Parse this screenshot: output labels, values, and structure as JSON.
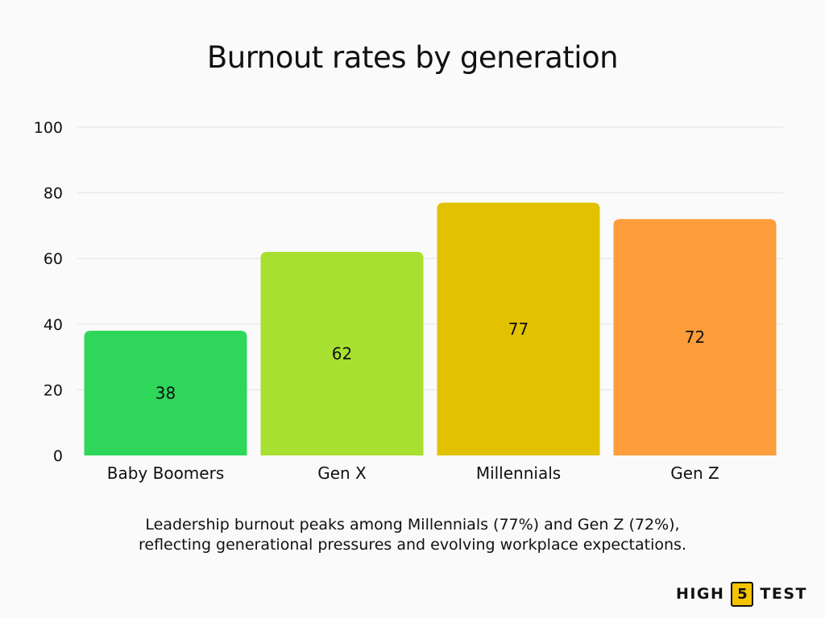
{
  "chart_data": {
    "type": "bar",
    "title": "Burnout rates by generation",
    "categories": [
      "Baby Boomers",
      "Gen X",
      "Millennials",
      "Gen Z"
    ],
    "values": [
      38,
      62,
      77,
      72
    ],
    "data_labels": [
      "38",
      "62",
      "77",
      "72"
    ],
    "colors": [
      "#2ed65a",
      "#a8e031",
      "#e2c200",
      "#fd9d3b"
    ],
    "xlabel": "",
    "ylabel": "",
    "ylim": [
      0,
      100
    ],
    "yticks": [
      0,
      20,
      40,
      60,
      80,
      100
    ],
    "grid": true,
    "legend": "none"
  },
  "caption": {
    "line1": "Leadership burnout peaks among Millennials (77%) and Gen Z (72%),",
    "line2": "reflecting generational pressures and evolving workplace expectations."
  },
  "logo": {
    "left": "HIGH",
    "number": "5",
    "right": "TEST",
    "badge_color": "#f5c400"
  }
}
